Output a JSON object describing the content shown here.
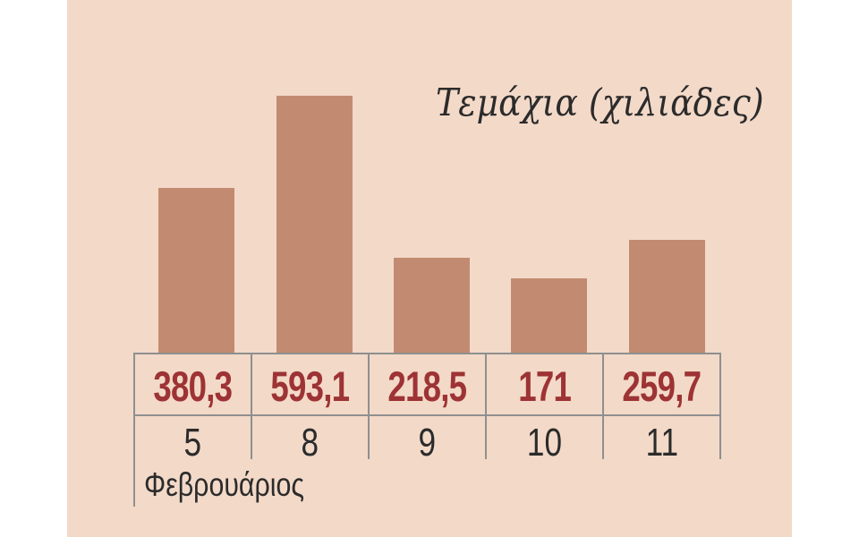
{
  "chart_data": {
    "type": "bar",
    "title": "Τεμάχια (χιλιάδες)",
    "xlabel": "Φεβρουάριος",
    "ylabel": "",
    "categories": [
      "5",
      "8",
      "9",
      "10",
      "11"
    ],
    "values": [
      380.3,
      593.1,
      218.5,
      171.0,
      259.7
    ],
    "value_labels": [
      "380,3",
      "593,1",
      "218,5",
      "171",
      "259,7"
    ],
    "ylim": [
      0,
      650
    ],
    "grid": false,
    "legend": false,
    "colors": {
      "background": "#f3d9c8",
      "bar": "#c28b71",
      "value_text": "#9d3335",
      "axis_text": "#2b2b2b",
      "line": "#8f8f8f"
    }
  }
}
